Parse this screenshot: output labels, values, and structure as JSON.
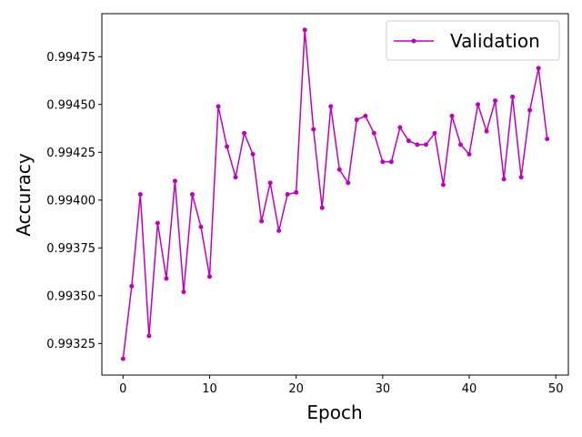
{
  "chart_data": {
    "type": "line",
    "xlabel": "Epoch",
    "ylabel": "Accuracy",
    "xlim": [
      -2.45,
      51.45
    ],
    "ylim": [
      0.993085,
      0.994975
    ],
    "xticks": [
      0,
      10,
      20,
      30,
      40,
      50
    ],
    "yticks": [
      0.99325,
      0.9935,
      0.99375,
      0.994,
      0.99425,
      0.9945,
      0.99475
    ],
    "ytick_labels": [
      "0.99325",
      "0.99350",
      "0.99375",
      "0.99400",
      "0.99425",
      "0.99450",
      "0.99475"
    ],
    "legend_position": "upper-right",
    "grid": false,
    "series": [
      {
        "name": "Validation",
        "color": "#bf00bf",
        "marker": "dot",
        "x": [
          0,
          1,
          2,
          3,
          4,
          5,
          6,
          7,
          8,
          9,
          10,
          11,
          12,
          13,
          14,
          15,
          16,
          17,
          18,
          19,
          20,
          21,
          22,
          23,
          24,
          25,
          26,
          27,
          28,
          29,
          30,
          31,
          32,
          33,
          34,
          35,
          36,
          37,
          38,
          39,
          40,
          41,
          42,
          43,
          44,
          45,
          46,
          47,
          48,
          49
        ],
        "y": [
          0.99317,
          0.99355,
          0.99403,
          0.99329,
          0.99388,
          0.99359,
          0.9941,
          0.99352,
          0.99403,
          0.99386,
          0.9936,
          0.99449,
          0.99428,
          0.99412,
          0.99435,
          0.99424,
          0.99389,
          0.99409,
          0.99384,
          0.99403,
          0.99404,
          0.99489,
          0.99437,
          0.99396,
          0.99449,
          0.99416,
          0.99409,
          0.99442,
          0.99444,
          0.99435,
          0.9942,
          0.9942,
          0.99438,
          0.99431,
          0.99429,
          0.99429,
          0.99435,
          0.99408,
          0.99444,
          0.99429,
          0.99424,
          0.9945,
          0.99436,
          0.99452,
          0.99411,
          0.99454,
          0.99412,
          0.99447,
          0.99469,
          0.99432
        ]
      }
    ]
  }
}
